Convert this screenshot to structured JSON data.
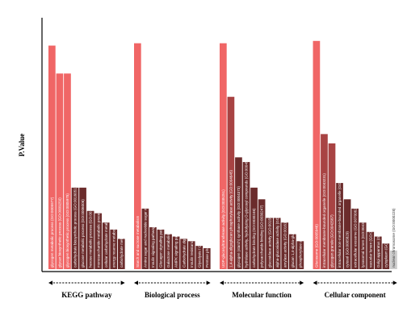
{
  "chart_data": {
    "type": "bar",
    "title": "",
    "xlabel": "",
    "ylabel": "P.Value",
    "ylim": [
      0,
      100
    ],
    "grid": false,
    "legend": "none",
    "colors": {
      "primary": "#f06666",
      "secondary": "#a84343",
      "tertiary": "#6b2c2c",
      "last": "#cccccc"
    },
    "groups": [
      {
        "name": "KEGG pathway",
        "bars": [
          {
            "label": "glycogen metabolic process (GO:0005977)",
            "value": 96,
            "color": "primary"
          },
          {
            "label": "glycan biosynthetic process (GO:0009250)",
            "value": 84,
            "color": "primary"
          },
          {
            "label": "glycogen biosynthetic process (GO:0005978)",
            "value": 84,
            "color": "primary"
          },
          {
            "label": "carbohydrate biosynthetic process (GO:0016051)",
            "value": 35,
            "color": "tertiary"
          },
          {
            "label": "glucose metabolic process (GO:0006006)",
            "value": 35,
            "color": "tertiary"
          },
          {
            "label": "hexose metabolic process (GO:0019318)",
            "value": 25,
            "color": "tertiary"
          },
          {
            "label": "monosaccharide metabolic process (GO:0005996)",
            "value": 24,
            "color": "tertiary"
          },
          {
            "label": "cellular carbohydrate metabolic process (GO:0044262)",
            "value": 20,
            "color": "tertiary"
          },
          {
            "label": "energy reserve metabolic process (GO:0006112)",
            "value": 17,
            "color": "tertiary"
          },
          {
            "label": "carbohydrate metabolic process (GO:0005975)",
            "value": 13,
            "color": "tertiary"
          }
        ]
      },
      {
        "name": "Biological process",
        "bars": [
          {
            "label": "Starch and sucrose metabolism",
            "value": 97,
            "color": "primary"
          },
          {
            "label": "Amino sugar and nucleotide sugar metabolism",
            "value": 26,
            "color": "tertiary"
          },
          {
            "label": "Insulin signaling pathway",
            "value": 18,
            "color": "tertiary"
          },
          {
            "label": "Glucagon signaling pathway",
            "value": 17,
            "color": "tertiary"
          },
          {
            "label": "Galactose metabolism",
            "value": 15,
            "color": "tertiary"
          },
          {
            "label": "AMPK signaling pathway",
            "value": 14,
            "color": "tertiary"
          },
          {
            "label": "Carbohydrate digestion and absorption",
            "value": 13,
            "color": "tertiary"
          },
          {
            "label": "Insulin resistance",
            "value": 12,
            "color": "tertiary"
          },
          {
            "label": "Glycolysis / Gluconeogenesis",
            "value": 10,
            "color": "tertiary"
          },
          {
            "label": "Pentose phosphate pathway",
            "value": 9,
            "color": "tertiary"
          }
        ]
      },
      {
        "name": "Molecular function",
        "bars": [
          {
            "label": "UDP-glucosyltransferase activity (GO:0035251)",
            "value": 97,
            "color": "primary"
          },
          {
            "label": "1,4-alpha-oligoglucan phosphorylase activity (GO:0004645)",
            "value": 74,
            "color": "secondary"
          },
          {
            "label": "glycogen (starch) synthase activity (GO:0004373)",
            "value": 48,
            "color": "tertiary"
          },
          {
            "label": "hydrolase activity, hydrolyzing O-glycosyl compounds (GO:0004553)",
            "value": 46,
            "color": "tertiary"
          },
          {
            "label": "carbohydrate binding (GO:0030246)",
            "value": 35,
            "color": "tertiary"
          },
          {
            "label": "polysaccharide binding (GO:0030247)",
            "value": 30,
            "color": "tertiary"
          },
          {
            "label": "glucosidase activity (GO:0015926)",
            "value": 22,
            "color": "tertiary"
          },
          {
            "label": "alpha-glucosidase activity (GO:0090599)",
            "value": 22,
            "color": "tertiary"
          },
          {
            "label": "amylase activity (GO:0016160)",
            "value": 20,
            "color": "tertiary"
          },
          {
            "label": "glucan 1,4-alpha-glucosidase activity (GO:0004339)",
            "value": 15,
            "color": "tertiary"
          },
          {
            "label": "phosphorylase activity (GO:0004645)",
            "value": 12,
            "color": "tertiary"
          }
        ]
      },
      {
        "name": "Cellular component",
        "bars": [
          {
            "label": "Glucosome (GO:0005946)",
            "value": 98,
            "color": "primary"
          },
          {
            "label": "intracellular membrane-bounded organelle (GO:0043231)",
            "value": 58,
            "color": "secondary"
          },
          {
            "label": "glycogen granule (GO:0042587)",
            "value": 54,
            "color": "secondary"
          },
          {
            "label": "intracellular non-membrane-bounded organelle (GO:0043232)",
            "value": 37,
            "color": "tertiary"
          },
          {
            "label": "cytosol (GO:0005829)",
            "value": 30,
            "color": "tertiary"
          },
          {
            "label": "extracellular exosome (GO:0070062)",
            "value": 26,
            "color": "tertiary"
          },
          {
            "label": "lysosomal lumen (GO:0043202)",
            "value": 20,
            "color": "tertiary"
          },
          {
            "label": "vacuolar lumen (GO:0005775)",
            "value": 16,
            "color": "tertiary"
          },
          {
            "label": "Golgi apparatus (GO:0005794)",
            "value": 14,
            "color": "tertiary"
          },
          {
            "label": "cytoplasm (GO:0005737)",
            "value": 11,
            "color": "tertiary"
          },
          {
            "label": "nuclear chromosome (GO:0000228)",
            "value": 8,
            "color": "last"
          }
        ]
      }
    ]
  }
}
